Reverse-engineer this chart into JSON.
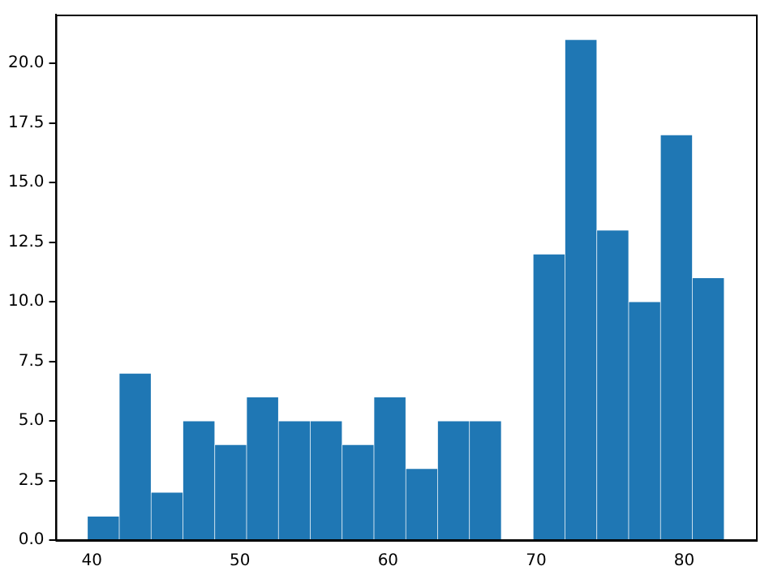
{
  "chart_data": {
    "type": "histogram",
    "bins": [
      39.7,
      41.85,
      44.0,
      46.15,
      48.3,
      50.45,
      52.6,
      54.75,
      56.9,
      59.05,
      61.2,
      63.35,
      65.5,
      67.65,
      69.8,
      71.95,
      74.1,
      76.25,
      78.4,
      80.55,
      82.7
    ],
    "values": [
      1,
      7,
      2,
      5,
      4,
      6,
      5,
      5,
      4,
      6,
      3,
      5,
      5,
      0,
      12,
      21,
      13,
      10,
      17,
      11
    ],
    "color": "#1f77b4",
    "xlim": [
      37.55,
      84.85
    ],
    "xticks": [
      40,
      50,
      60,
      70,
      80
    ],
    "ylim": [
      0,
      22.05
    ],
    "yticks": [
      {
        "value": 0,
        "label": "0.0"
      },
      {
        "value": 2.5,
        "label": "2.5"
      },
      {
        "value": 5,
        "label": "5.0"
      },
      {
        "value": 7.5,
        "label": "7.5"
      },
      {
        "value": 10,
        "label": "10.0"
      },
      {
        "value": 12.5,
        "label": "12.5"
      },
      {
        "value": 15,
        "label": "15.0"
      },
      {
        "value": 17.5,
        "label": "17.5"
      },
      {
        "value": 20,
        "label": "20.0"
      }
    ],
    "grid": false,
    "legend": false
  }
}
